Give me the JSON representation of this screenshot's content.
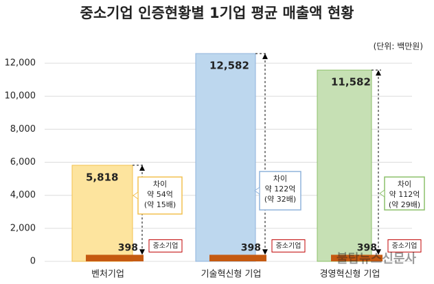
{
  "chart_data": {
    "type": "bar",
    "title": "중소기업 인증현황별 1기업 평균 매출액 현황",
    "unit": "(단위: 백만원)",
    "categories": [
      "벤처기업",
      "기술혁신형 기업",
      "경영혁신형 기업"
    ],
    "series": [
      {
        "values": [
          5818,
          12582,
          11582
        ],
        "value_labels": [
          "5,818",
          "12,582",
          "11,582"
        ],
        "colors": [
          "#fde49e",
          "#bdd7ee",
          "#c6e0b4"
        ],
        "border_colors": [
          "#f2c14e",
          "#8fb3dc",
          "#8cc06a"
        ]
      },
      {
        "name": "중소기업",
        "color": "#c55a11",
        "label_color": "#c00000",
        "values": [
          398,
          398,
          398
        ]
      }
    ],
    "annotations": [
      [
        "차이",
        "약 54억",
        "(약 15배)"
      ],
      [
        "차이",
        "약 122억",
        "(약 32배)"
      ],
      [
        "차이",
        "약 112억",
        "(약 29배)"
      ]
    ],
    "ylim": [
      0,
      13000
    ],
    "yticks": [
      0,
      {
        "value": 2000,
        "label": "2,000"
      },
      {
        "value": 4000,
        "label": "4,000"
      },
      {
        "value": 6000,
        "label": "6,000"
      },
      {
        "value": 8000,
        "label": "8,000"
      },
      {
        "value": 10000,
        "label": "10,000"
      },
      {
        "value": 12000,
        "label": "12,000"
      }
    ],
    "grid": true,
    "watermark": "불탑뉴스신문사"
  }
}
